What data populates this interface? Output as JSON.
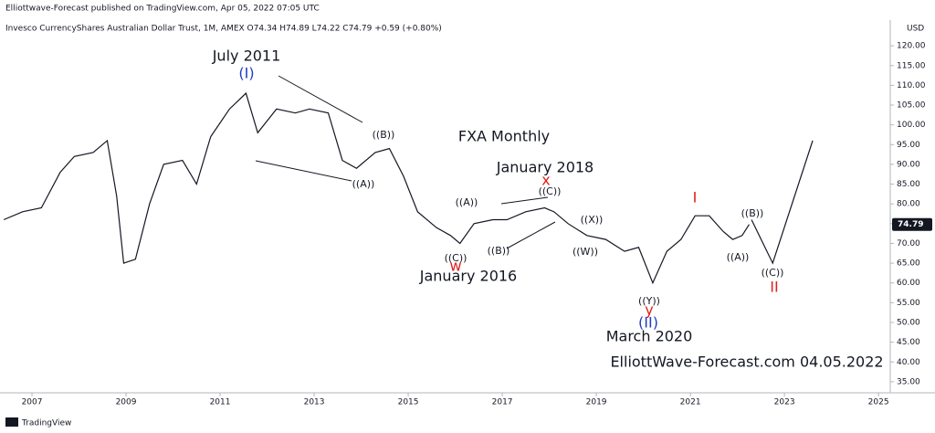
{
  "chart_data": {
    "type": "line",
    "publisher": "Elliottwave-Forecast published on TradingView.com, Apr 05, 2022 07:05 UTC",
    "title": "Invesco CurrencyShares Australian Dollar Trust, 1M, AMEX  O74.34  H74.89  L74.22  C74.79  +0.59 (+0.80%)",
    "currency": "USD",
    "footer": "TradingView",
    "x": [
      2006.4,
      2006.8,
      2007.2,
      2007.6,
      2007.9,
      2008.3,
      2008.6,
      2008.8,
      2008.95,
      2009.2,
      2009.5,
      2009.8,
      2010.2,
      2010.5,
      2010.8,
      2011.2,
      2011.55,
      2011.8,
      2012.2,
      2012.6,
      2012.9,
      2013.3,
      2013.6,
      2013.9,
      2014.3,
      2014.6,
      2014.9,
      2015.2,
      2015.6,
      2015.9,
      2016.1,
      2016.4,
      2016.8,
      2017.1,
      2017.5,
      2017.9,
      2018.1,
      2018.4,
      2018.8,
      2019.2,
      2019.6,
      2019.9,
      2020.2,
      2020.5,
      2020.8,
      2021.1,
      2021.4,
      2021.7,
      2021.9,
      2022.1,
      2022.25
    ],
    "series": [
      {
        "color": "#131722",
        "values": [
          76,
          78,
          79,
          88,
          92,
          93,
          96,
          82,
          65,
          66,
          80,
          90,
          91,
          85,
          97,
          104,
          108,
          98,
          104,
          103,
          104,
          103,
          91,
          89,
          93,
          94,
          87,
          78,
          74,
          72,
          70,
          75,
          76,
          76,
          78,
          79,
          78,
          75,
          72,
          71,
          68,
          69,
          60,
          68,
          71,
          77,
          77,
          73,
          71,
          72,
          74.79
        ],
        "value_labels": [
          null,
          null,
          null,
          null,
          null,
          null,
          null,
          null,
          null,
          null,
          null,
          null,
          null,
          null,
          null,
          null,
          null,
          null,
          null,
          null,
          null,
          null,
          null,
          null,
          null,
          null,
          null,
          null,
          null,
          null,
          null,
          null,
          null,
          null,
          null,
          null,
          null,
          null,
          null,
          null,
          null,
          null,
          null,
          null,
          null,
          null,
          null,
          null,
          null,
          null,
          "74.79"
        ]
      },
      {
        "color": "#131722",
        "x": [
          2022.3,
          2022.75,
          2023.6
        ],
        "values": [
          76,
          65,
          96
        ]
      }
    ],
    "xlim": [
      2006.32,
      2025.25
    ],
    "xticks": [
      2007,
      2009,
      2011,
      2013,
      2015,
      2017,
      2019,
      2021,
      2023,
      2025
    ],
    "ylim": [
      32.2,
      126.5
    ],
    "yticks": [
      {
        "value": 35,
        "label": "35.00"
      },
      {
        "value": 40,
        "label": "40.00"
      },
      {
        "value": 45,
        "label": "45.00"
      },
      {
        "value": 50,
        "label": "50.00"
      },
      {
        "value": 55,
        "label": "55.00"
      },
      {
        "value": 60,
        "label": "60.00"
      },
      {
        "value": 65,
        "label": "65.00"
      },
      {
        "value": 70,
        "label": "70.00"
      },
      {
        "value": 75,
        "label": "75.00"
      },
      {
        "value": 80,
        "label": "80.00"
      },
      {
        "value": 85,
        "label": "85.00"
      },
      {
        "value": 90,
        "label": "90.00"
      },
      {
        "value": 95,
        "label": "95.00"
      },
      {
        "value": 100,
        "label": "100.00"
      },
      {
        "value": 105,
        "label": "105.00"
      },
      {
        "value": 110,
        "label": "110.00"
      },
      {
        "value": 115,
        "label": "115.00"
      },
      {
        "value": 120,
        "label": "120.00"
      }
    ],
    "annotations": [
      {
        "text": "July 2011",
        "color": "#131722"
      },
      {
        "text": "(I)",
        "color": "#1e3fbf"
      },
      {
        "text": "((B))",
        "color": "#131722"
      },
      {
        "text": "((A))",
        "color": "#131722"
      },
      {
        "text": "FXA Monthly",
        "color": "#131722"
      },
      {
        "text": "January 2018",
        "color": "#131722"
      },
      {
        "text": "x",
        "color": "#e0201b"
      },
      {
        "text": "((C))",
        "color": "#131722"
      },
      {
        "text": "((A))",
        "color": "#131722"
      },
      {
        "text": "((X))",
        "color": "#131722"
      },
      {
        "text": "((B))",
        "color": "#131722"
      },
      {
        "text": "((W))",
        "color": "#131722"
      },
      {
        "text": "((C))",
        "color": "#131722"
      },
      {
        "text": "w",
        "color": "#e0201b"
      },
      {
        "text": "January 2016",
        "color": "#131722"
      },
      {
        "text": "I",
        "color": "#e0201b"
      },
      {
        "text": "((B))",
        "color": "#131722"
      },
      {
        "text": "((A))",
        "color": "#131722"
      },
      {
        "text": "((C))",
        "color": "#131722"
      },
      {
        "text": "II",
        "color": "#e0201b"
      },
      {
        "text": "((Y))",
        "color": "#131722"
      },
      {
        "text": "y",
        "color": "#e0201b"
      },
      {
        "text": "(II)",
        "color": "#1e3fbf"
      },
      {
        "text": "March 2020",
        "color": "#131722"
      },
      {
        "text": "ElliottWave-Forecast.com 04.05.2022",
        "color": "#131722"
      }
    ]
  }
}
